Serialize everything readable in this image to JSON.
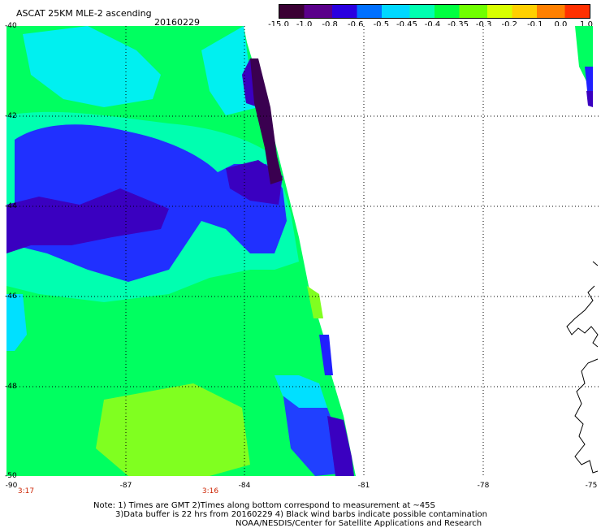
{
  "header": {
    "title": "ASCAT 25KM MLE-2 ascending",
    "date": "20160229"
  },
  "colorbar": {
    "labels": [
      "-15.0",
      "-1.0",
      "-0.8",
      "-0.6",
      "-0.5",
      "-0.45",
      "-0.4",
      "-0.35",
      "-0.3",
      "-0.2",
      "-0.1",
      "0.0",
      "1.0"
    ],
    "colors": [
      "#3a0033",
      "#5a008a",
      "#2a00e0",
      "#0070ff",
      "#00d8ff",
      "#00ffb0",
      "#00ff40",
      "#70ff00",
      "#d8ff00",
      "#ffd000",
      "#ff8000",
      "#ff3000"
    ]
  },
  "map": {
    "lat_labels": [
      "-40",
      "-42",
      "-44",
      "-46",
      "-48",
      "-50"
    ],
    "lon_labels": [
      "-90",
      "-87",
      "-84",
      "-81",
      "-78",
      "-75"
    ],
    "time_labels": [
      "3:17",
      "3:16"
    ],
    "legend_colors": {
      "deep_purple": "#3a0050",
      "purple": "#3a00c0",
      "blue": "#2020ff",
      "cyan": "#00f0f0",
      "aqua": "#00ffa0",
      "green": "#00ff50",
      "yellow_green": "#80ff20"
    }
  },
  "notes": {
    "line1": "Note: 1) Times are GMT 2)Times along bottom correspond to measurement at ~45S",
    "line2": "3)Data buffer is 22 hrs from 20160229 4) Black wind barbs indicate possible contamination",
    "line3": "NOAA/NESDIS/Center for Satellite Applications and Research"
  }
}
